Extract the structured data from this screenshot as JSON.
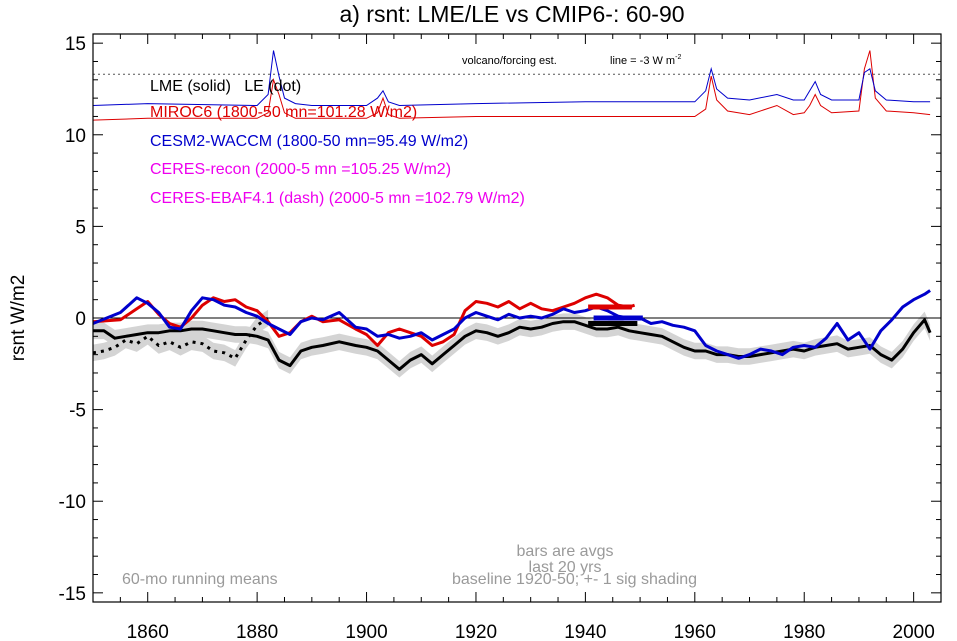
{
  "chart_data": {
    "type": "line",
    "title": "a) rsnt: LME/LE vs CMIP6-: 60-90",
    "ylabel": "rsnt W/m2",
    "xlabel": "",
    "xlim": [
      1850,
      2005
    ],
    "ylim": [
      -15.5,
      15.5
    ],
    "xticks": [
      1860,
      1880,
      1900,
      1920,
      1940,
      1960,
      1980,
      2000
    ],
    "yticks": [
      -15,
      -10,
      -5,
      0,
      5,
      10,
      15
    ],
    "grid": false,
    "zero_line": 0,
    "legend": {
      "placement": "top-left",
      "header": "LME (solid)   LE (dot)",
      "entries": [
        {
          "label": "MIROC6 (1800-50 mn=101.28 W/m2)",
          "color": "#dd0000"
        },
        {
          "label": "CESM2-WACCM (1800-50 mn=95.49 W/m2)",
          "color": "#0000cc"
        },
        {
          "label": "CERES-recon (2000-5 mn =105.25 W/m2)",
          "color": "#ee00ee"
        },
        {
          "label": "CERES-EBAF4.1 (dash) (2000-5 mn =102.79 W/m2)",
          "color": "#ee00ee"
        }
      ]
    },
    "annotations": {
      "forcing_label": "volcano/forcing est.",
      "forcing_line_label": "line = -3 W m",
      "forcing_line_sup": "-2",
      "forcing_ref_y": 13.3,
      "bars_note_1": "bars are avgs",
      "bars_note_2": "last 20 yrs",
      "running_means": "60-mo running means",
      "baseline": "baseline 1920-50; +- 1 sig shading"
    },
    "series": [
      {
        "name": "MIROC6",
        "color": "#dd0000",
        "x": [
          1850,
          1855,
          1858,
          1860,
          1862,
          1864,
          1866,
          1868,
          1870,
          1872,
          1874,
          1876,
          1878,
          1880,
          1882,
          1884,
          1886,
          1888,
          1890,
          1892,
          1895,
          1898,
          1900,
          1902,
          1904,
          1906,
          1908,
          1910,
          1912,
          1914,
          1916,
          1918,
          1920,
          1922,
          1924,
          1926,
          1928,
          1930,
          1932,
          1934,
          1936,
          1938,
          1940,
          1942,
          1944,
          1946,
          1948,
          1949
        ],
        "y": [
          -0.2,
          -0.1,
          0.5,
          0.9,
          0.2,
          -0.3,
          -0.5,
          0.0,
          0.7,
          1.1,
          0.9,
          1.0,
          0.6,
          0.4,
          -0.2,
          -1.0,
          -0.8,
          -0.2,
          0.1,
          -0.2,
          -0.1,
          -0.6,
          -0.9,
          -1.5,
          -0.8,
          -0.6,
          -0.8,
          -1.0,
          -1.5,
          -1.3,
          -0.9,
          0.4,
          0.9,
          0.8,
          0.6,
          0.9,
          0.5,
          0.8,
          0.5,
          0.4,
          0.6,
          0.8,
          1.1,
          1.3,
          1.1,
          0.7,
          0.6,
          0.7
        ]
      },
      {
        "name": "CESM2-WACCM",
        "color": "#0000cc",
        "x": [
          1850,
          1855,
          1858,
          1860,
          1862,
          1864,
          1866,
          1868,
          1870,
          1872,
          1874,
          1876,
          1878,
          1880,
          1882,
          1884,
          1886,
          1888,
          1890,
          1892,
          1895,
          1898,
          1900,
          1902,
          1904,
          1906,
          1908,
          1910,
          1912,
          1914,
          1916,
          1918,
          1920,
          1922,
          1924,
          1926,
          1928,
          1930,
          1932,
          1934,
          1936,
          1938,
          1940,
          1942,
          1944,
          1946,
          1948,
          1950,
          1952,
          1954,
          1956,
          1958,
          1960,
          1962,
          1964,
          1966,
          1968,
          1970,
          1972,
          1974,
          1976,
          1978,
          1980,
          1982,
          1984,
          1986,
          1988,
          1990,
          1992,
          1994,
          1996,
          1998,
          2000,
          2002,
          2003
        ],
        "y": [
          -0.3,
          0.3,
          1.1,
          0.8,
          0.3,
          -0.5,
          -0.6,
          0.4,
          1.1,
          1.0,
          0.7,
          0.6,
          0.3,
          0.1,
          -0.3,
          -0.6,
          -0.9,
          -0.2,
          0.0,
          -0.1,
          0.3,
          -0.5,
          -0.6,
          -1.0,
          -0.9,
          -1.1,
          -1.0,
          -0.8,
          -1.2,
          -0.9,
          -0.6,
          0.0,
          0.3,
          0.1,
          -0.1,
          0.2,
          0.0,
          0.1,
          0.0,
          0.2,
          0.5,
          0.3,
          0.4,
          0.6,
          0.4,
          0.1,
          0.0,
          0.0,
          -0.3,
          -0.2,
          -0.4,
          -0.5,
          -0.7,
          -1.5,
          -1.8,
          -2.0,
          -2.2,
          -2.0,
          -1.7,
          -1.8,
          -2.0,
          -1.6,
          -1.5,
          -1.6,
          -1.1,
          -0.3,
          -1.2,
          -0.8,
          -1.7,
          -0.7,
          -0.1,
          0.6,
          1.0,
          1.3,
          1.5
        ]
      },
      {
        "name": "LME",
        "color": "#000000",
        "x": [
          1850,
          1852,
          1854,
          1856,
          1858,
          1860,
          1862,
          1864,
          1866,
          1868,
          1870,
          1872,
          1874,
          1876,
          1878,
          1880,
          1882,
          1884,
          1886,
          1888,
          1890,
          1892,
          1895,
          1898,
          1900,
          1902,
          1904,
          1906,
          1908,
          1910,
          1912,
          1914,
          1916,
          1918,
          1920,
          1922,
          1924,
          1926,
          1928,
          1930,
          1932,
          1934,
          1936,
          1938,
          1940,
          1942,
          1944,
          1946,
          1948,
          1950,
          1952,
          1954,
          1956,
          1958,
          1960,
          1962,
          1964,
          1966,
          1968,
          1970,
          1972,
          1974,
          1976,
          1978,
          1980,
          1982,
          1984,
          1986,
          1988,
          1990,
          1992,
          1994,
          1996,
          1998,
          2000,
          2002,
          2003
        ],
        "y": [
          -0.7,
          -0.7,
          -1.1,
          -1.0,
          -0.9,
          -0.8,
          -0.8,
          -0.7,
          -0.7,
          -0.6,
          -0.6,
          -0.7,
          -0.8,
          -0.9,
          -0.9,
          -1.0,
          -1.2,
          -2.3,
          -2.6,
          -1.8,
          -1.6,
          -1.5,
          -1.3,
          -1.5,
          -1.6,
          -1.8,
          -2.3,
          -2.8,
          -2.3,
          -2.0,
          -2.5,
          -2.0,
          -1.5,
          -1.0,
          -0.7,
          -0.8,
          -1.0,
          -0.8,
          -0.5,
          -0.6,
          -0.5,
          -0.3,
          -0.2,
          -0.2,
          -0.4,
          -0.6,
          -0.6,
          -0.5,
          -0.7,
          -0.8,
          -0.9,
          -1.0,
          -1.3,
          -1.6,
          -1.8,
          -1.8,
          -2.0,
          -2.0,
          -2.1,
          -2.1,
          -2.0,
          -1.9,
          -1.8,
          -1.7,
          -1.8,
          -1.6,
          -1.5,
          -1.4,
          -1.7,
          -1.6,
          -1.5,
          -2.0,
          -2.3,
          -1.7,
          -0.8,
          -0.1,
          -0.8
        ]
      },
      {
        "name": "LE",
        "color": "#000000",
        "dash": "dot",
        "x": [
          1850,
          1852,
          1854,
          1856,
          1858,
          1860,
          1862,
          1864,
          1866,
          1868,
          1870,
          1872,
          1874,
          1876,
          1878,
          1880,
          1882
        ],
        "y": [
          -1.9,
          -1.8,
          -1.6,
          -1.2,
          -1.4,
          -1.0,
          -1.5,
          -1.3,
          -1.6,
          -1.3,
          -1.4,
          -1.8,
          -1.9,
          -2.2,
          -1.2,
          -0.4,
          0.0
        ]
      },
      {
        "name": "MIROC6 forcing",
        "color": "#dd0000",
        "x": [
          1850,
          1860,
          1880,
          1882,
          1883,
          1884,
          1885,
          1887,
          1890,
          1900,
          1902,
          1903,
          1904,
          1906,
          1920,
          1940,
          1960,
          1962,
          1963,
          1964,
          1966,
          1970,
          1975,
          1978,
          1980,
          1981,
          1982,
          1983,
          1985,
          1990,
          1991,
          1992,
          1993,
          1995,
          2000,
          2003
        ],
        "y": [
          10.8,
          10.9,
          10.9,
          11.2,
          13.0,
          12.2,
          11.2,
          10.9,
          10.9,
          10.9,
          11.2,
          12.0,
          11.1,
          10.9,
          11.0,
          11.0,
          11.0,
          11.4,
          13.2,
          11.9,
          11.3,
          11.1,
          11.6,
          11.1,
          11.2,
          11.6,
          12.2,
          11.6,
          11.2,
          11.3,
          13.6,
          14.6,
          12.0,
          11.3,
          11.2,
          11.1
        ]
      },
      {
        "name": "CESM2-WACCM forcing",
        "color": "#0000cc",
        "x": [
          1850,
          1860,
          1880,
          1882,
          1883,
          1884,
          1885,
          1887,
          1890,
          1900,
          1902,
          1903,
          1904,
          1906,
          1920,
          1940,
          1960,
          1962,
          1963,
          1964,
          1966,
          1970,
          1975,
          1978,
          1980,
          1981,
          1982,
          1983,
          1985,
          1990,
          1991,
          1992,
          1993,
          1995,
          2000,
          2003
        ],
        "y": [
          11.6,
          11.7,
          11.6,
          12.2,
          14.6,
          13.2,
          12.0,
          11.7,
          11.6,
          11.6,
          12.0,
          12.4,
          11.8,
          11.6,
          11.7,
          11.8,
          11.8,
          12.4,
          13.6,
          12.5,
          12.0,
          11.9,
          12.2,
          11.9,
          11.9,
          12.4,
          12.9,
          12.2,
          11.9,
          11.9,
          13.4,
          13.6,
          12.4,
          11.9,
          11.8,
          11.8
        ]
      }
    ],
    "shading": {
      "color": "#d4d4d4",
      "sigma": 0.45
    },
    "bars": [
      {
        "series": "MIROC6",
        "color": "#dd0000",
        "x0": 1940.5,
        "x1": 1948.5,
        "y": 0.6
      },
      {
        "series": "CESM2-WACCM",
        "color": "#0000cc",
        "x0": 1941.5,
        "x1": 1950.5,
        "y": 0.0
      },
      {
        "series": "LME",
        "color": "#000000",
        "x0": 1940.5,
        "x1": 1949.5,
        "y": -0.3
      }
    ]
  }
}
